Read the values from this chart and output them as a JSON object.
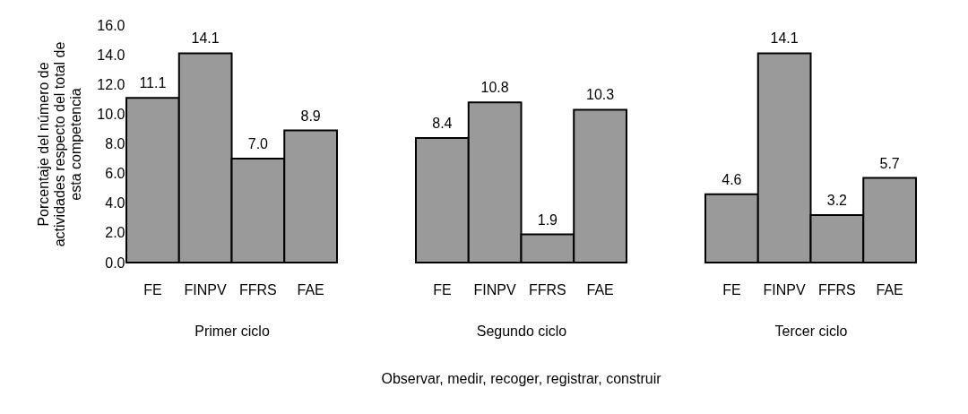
{
  "chart_data": [
    {
      "type": "bar",
      "xlabel": "Primer ciclo",
      "ylabel": "Porcentaje del número de actividades respecto del total de esta competencia",
      "categories": [
        "FE",
        "FINPV",
        "FFRS",
        "FAE"
      ],
      "values": [
        11.1,
        14.1,
        7.0,
        8.9
      ],
      "value_labels": [
        "11.1",
        "14.1",
        "7.0",
        "8.9"
      ],
      "color": "#9a9a9a",
      "ylim": [
        0,
        16
      ],
      "yticks": [
        {
          "value": 0,
          "label": "0.0"
        },
        {
          "value": 2,
          "label": "2.0"
        },
        {
          "value": 4,
          "label": "4.0"
        },
        {
          "value": 6,
          "label": "6.0"
        },
        {
          "value": 8,
          "label": "8.0"
        },
        {
          "value": 10,
          "label": "10.0"
        },
        {
          "value": 12,
          "label": "12.0"
        },
        {
          "value": 14,
          "label": "14.0"
        },
        {
          "value": 16,
          "label": "16.0"
        }
      ],
      "grid": false
    },
    {
      "type": "bar",
      "xlabel": "Segundo ciclo",
      "annotations": [
        "Observar, medir, recoger, registrar, construir"
      ],
      "categories": [
        "FE",
        "FINPV",
        "FFRS",
        "FAE"
      ],
      "values": [
        8.4,
        10.8,
        1.9,
        10.3
      ],
      "value_labels": [
        "8.4",
        "10.8",
        "1.9",
        "10.3"
      ],
      "color": "#9a9a9a",
      "ylim": [
        0,
        16
      ],
      "tick_labels": "x",
      "grid": false
    },
    {
      "type": "bar",
      "xlabel": "Tercer ciclo",
      "categories": [
        "FE",
        "FINPV",
        "FFRS",
        "FAE"
      ],
      "values": [
        4.6,
        14.1,
        3.2,
        5.7
      ],
      "value_labels": [
        "4.6",
        "14.1",
        "3.2",
        "5.7"
      ],
      "color": "#9a9a9a",
      "ylim": [
        0,
        16
      ],
      "tick_labels": "x",
      "grid": false
    }
  ]
}
